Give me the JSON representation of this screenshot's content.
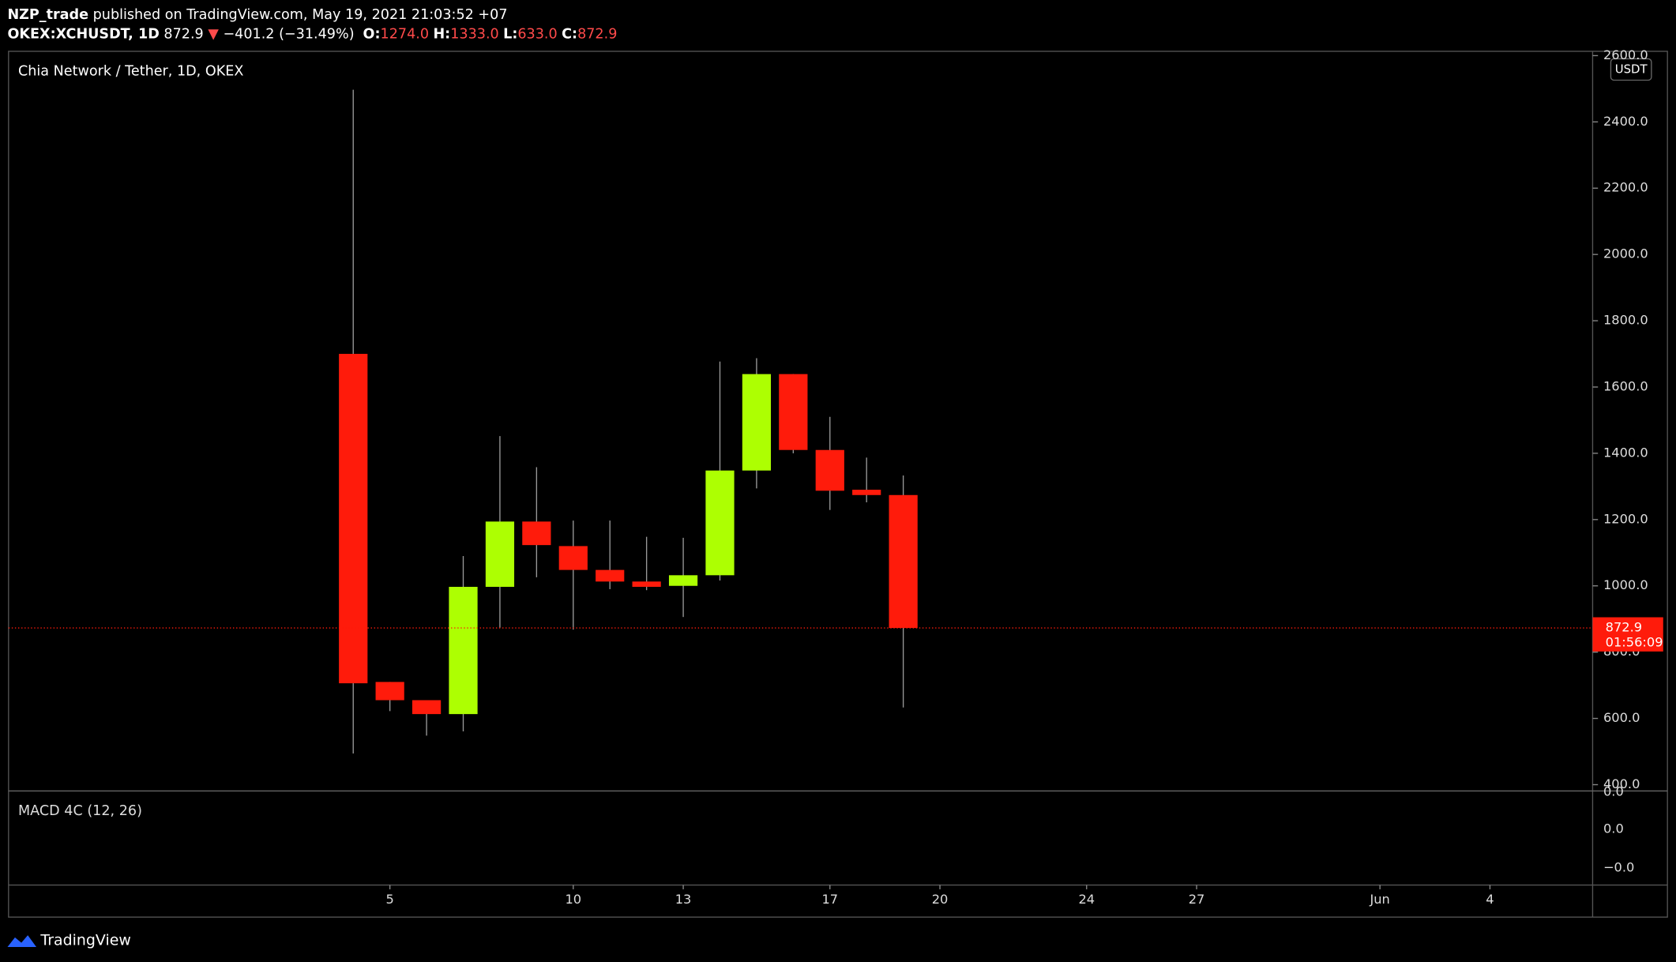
{
  "chart_data": {
    "type": "candlestick",
    "publisher": "NZP_trade",
    "published": "published on TradingView.com, May 19, 2021 21:03:52 +07",
    "symbol": "OKEX:XCHUSDT, 1D",
    "last": "872.9",
    "arrow": "▼",
    "change": "−401.2 (−31.49%)",
    "ohlc_labels": [
      {
        "key": "O:",
        "value": "1274.0"
      },
      {
        "key": "H:",
        "value": "1333.0"
      },
      {
        "key": "L:",
        "value": "633.0"
      },
      {
        "key": "C:",
        "value": "872.9"
      }
    ],
    "title": "Chia Network / Tether, 1D, OKEX",
    "currency": "USDT",
    "countdown": "01:56:09",
    "up_color": "#adff02",
    "down_color": "#ff1b0b",
    "x": [
      4,
      5,
      6,
      7,
      8,
      9,
      10,
      11,
      12,
      13,
      14,
      15,
      16,
      17,
      18,
      19
    ],
    "open": [
      1700,
      710,
      655,
      613,
      997,
      1194,
      1120,
      1048,
      1013,
      1000,
      1032,
      1348,
      1639,
      1410,
      1290,
      1274
    ],
    "high": [
      2497,
      710,
      655,
      1090,
      1452,
      1358,
      1197,
      1197,
      1148,
      1145,
      1677,
      1687,
      1639,
      1510,
      1387,
      1333
    ],
    "low": [
      494,
      622,
      548,
      561,
      874,
      1026,
      868,
      990,
      987,
      906,
      1016,
      1294,
      1400,
      1229,
      1252,
      633
    ],
    "close": [
      706,
      655,
      613,
      997,
      1194,
      1123,
      1048,
      1013,
      997,
      1032,
      1348,
      1639,
      1410,
      1287,
      1274,
      872.9
    ],
    "xlim": [
      -5.4,
      37.8
    ],
    "xticks": [
      5,
      10,
      13,
      17,
      20,
      24,
      27,
      {
        "value": 32,
        "label": "Jun"
      },
      {
        "value": 35,
        "label": "4"
      }
    ],
    "ylim": [
      381,
      2613
    ],
    "yticks": [
      {
        "value": 400,
        "label": "400.0"
      },
      {
        "value": 600,
        "label": "600.0"
      },
      {
        "value": 800,
        "label": "800.0"
      },
      {
        "value": 1000,
        "label": "1000.0"
      },
      {
        "value": 1200,
        "label": "1200.0"
      },
      {
        "value": 1400,
        "label": "1400.0"
      },
      {
        "value": 1600,
        "label": "1600.0"
      },
      {
        "value": 1800,
        "label": "1800.0"
      },
      {
        "value": 2000,
        "label": "2000.0"
      },
      {
        "value": 2200,
        "label": "2200.0"
      },
      {
        "value": 2400,
        "label": "2400.0"
      },
      {
        "value": 2600,
        "label": "2600.0"
      }
    ],
    "indicator": {
      "title": "MACD 4C (12, 26)",
      "tick_labels": [
        "0.0",
        "0.0",
        "−0.0"
      ]
    },
    "brand": "TradingView"
  }
}
